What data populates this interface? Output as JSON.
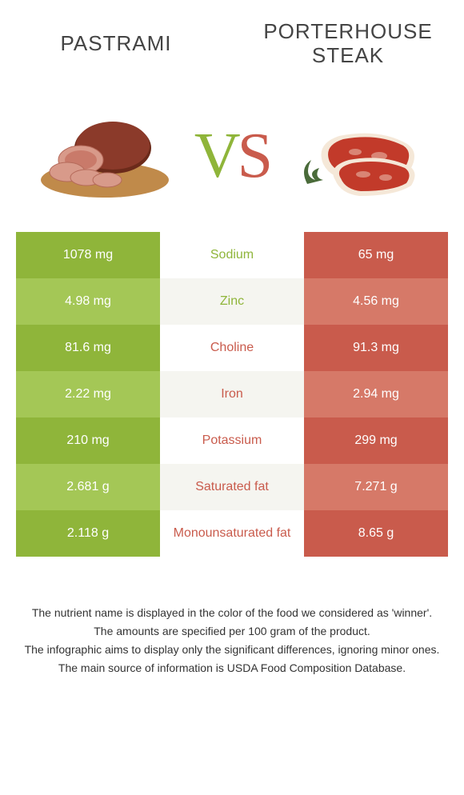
{
  "header": {
    "left": "Pastrami",
    "right": "Porterhouse steak"
  },
  "vs": {
    "v": "V",
    "s": "S"
  },
  "colors": {
    "left_odd": "#8fb53a",
    "left_even": "#a4c756",
    "right_odd": "#c95b4c",
    "right_even": "#d67968",
    "mid_odd": "#ffffff",
    "mid_even": "#f5f5f0",
    "left_text": "#8fb53a",
    "right_text": "#c95b4c"
  },
  "rows": [
    {
      "left": "1078 mg",
      "label": "Sodium",
      "right": "65 mg",
      "winner": "left"
    },
    {
      "left": "4.98 mg",
      "label": "Zinc",
      "right": "4.56 mg",
      "winner": "left"
    },
    {
      "left": "81.6 mg",
      "label": "Choline",
      "right": "91.3 mg",
      "winner": "right"
    },
    {
      "left": "2.22 mg",
      "label": "Iron",
      "right": "2.94 mg",
      "winner": "right"
    },
    {
      "left": "210 mg",
      "label": "Potassium",
      "right": "299 mg",
      "winner": "right"
    },
    {
      "left": "2.681 g",
      "label": "Saturated fat",
      "right": "7.271 g",
      "winner": "right"
    },
    {
      "left": "2.118 g",
      "label": "Monounsaturated fat",
      "right": "8.65 g",
      "winner": "right"
    }
  ],
  "footnotes": [
    "The nutrient name is displayed in the color of the food we considered as 'winner'.",
    "The amounts are specified per 100 gram of the product.",
    "The infographic aims to display only the significant differences, ignoring minor ones.",
    "The main source of information is USDA Food Composition Database."
  ]
}
